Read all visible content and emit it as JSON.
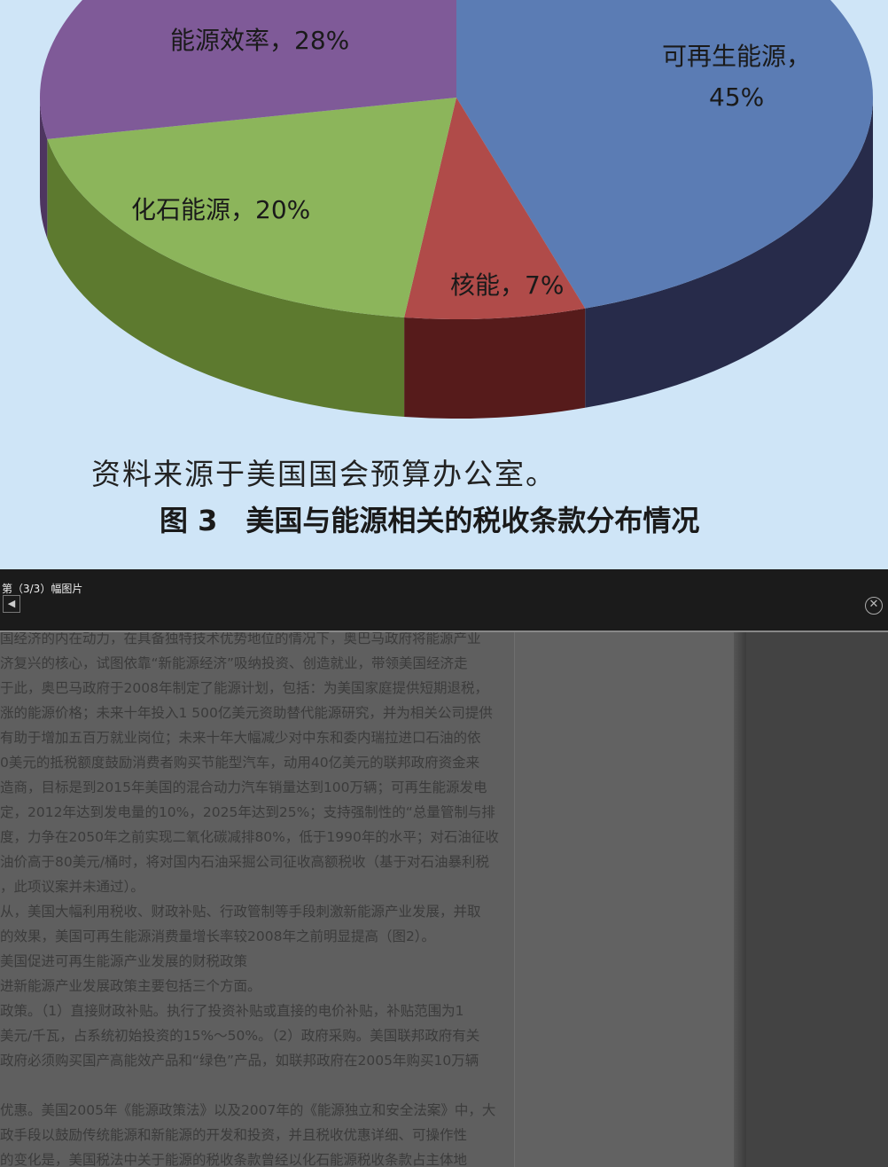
{
  "viewer": {
    "counter": "第（3/3）幅图片",
    "prev_icon": "chevron-left-icon",
    "close_icon": "close-circle-icon"
  },
  "figure": {
    "source": "资料来源于美国国会预算办公室。",
    "caption": "图 3　美国与能源相关的税收条款分布情况",
    "labels": [
      "可再生能源，",
      "45%",
      "核能，7%",
      "化石能源，20%",
      "能源效率，28%"
    ]
  },
  "chart_data": {
    "type": "pie",
    "style": "3d",
    "title": "图 3　美国与能源相关的税收条款分布情况",
    "categories": [
      "可再生能源",
      "核能",
      "化石能源",
      "能源效率"
    ],
    "values": [
      45,
      7,
      20,
      28
    ],
    "unit": "%",
    "colors": [
      "#5b7cb4",
      "#b04b49",
      "#8cb55b",
      "#7f5a98"
    ],
    "side_colors": [
      "#272b4a",
      "#561b1b",
      "#5d7a2f",
      "#4e3560"
    ]
  },
  "document": {
    "lines": [
      "国经济的内在动力，在具备独特技术优势地位的情况下，奥巴马政府将能源产业",
      "济复兴的核心，试图依靠“新能源经济”吸纳投资、创造就业，带领美国经济走",
      "于此，奥巴马政府于2008年制定了能源计划，包括：为美国家庭提供短期退税，",
      "涨的能源价格；未来十年投入1 500亿美元资助替代能源研究，并为相关公司提供",
      "有助于增加五百万就业岗位；未来十年大幅减少对中东和委内瑞拉进口石油的依",
      "0美元的抵税额度鼓励消费者购买节能型汽车，动用40亿美元的联邦政府资金来",
      "造商，目标是到2015年美国的混合动力汽车销量达到100万辆；可再生能源发电",
      "定，2012年达到发电量的10%，2025年达到25%；支持强制性的“总量管制与排",
      "度，力争在2050年之前实现二氧化碳减排80%，低于1990年的水平；对石油征收",
      "油价高于80美元/桶时，将对国内石油采掘公司征收高额税收（基于对石油暴利税",
      "，此项议案并未通过）。",
      "从，美国大幅利用税收、财政补贴、行政管制等手段刺激新能源产业发展，并取",
      "的效果，美国可再生能源消费量增长率较2008年之前明显提高（图2）。",
      "美国促进可再生能源产业发展的财税政策",
      "进新能源产业发展政策主要包括三个方面。",
      "政策。（1）直接财政补贴。执行了投资补贴或直接的电价补贴，补贴范围为1",
      "美元/千瓦，占系统初始投资的15%～50%。（2）政府采购。美国联邦政府有关",
      "政府必须购买国产高能效产品和“绿色”产品，如联邦政府在2005年购买10万辆",
      "",
      "优惠。美国2005年《能源政策法》以及2007年的《能源独立和安全法案》中，大",
      "政手段以鼓励传统能源和新能源的开发和投资，并且税收优惠详细、可操作性",
      "的变化是，美国税法中关于能源的税收条款曾经以化石能源税收条款占主体地"
    ]
  }
}
